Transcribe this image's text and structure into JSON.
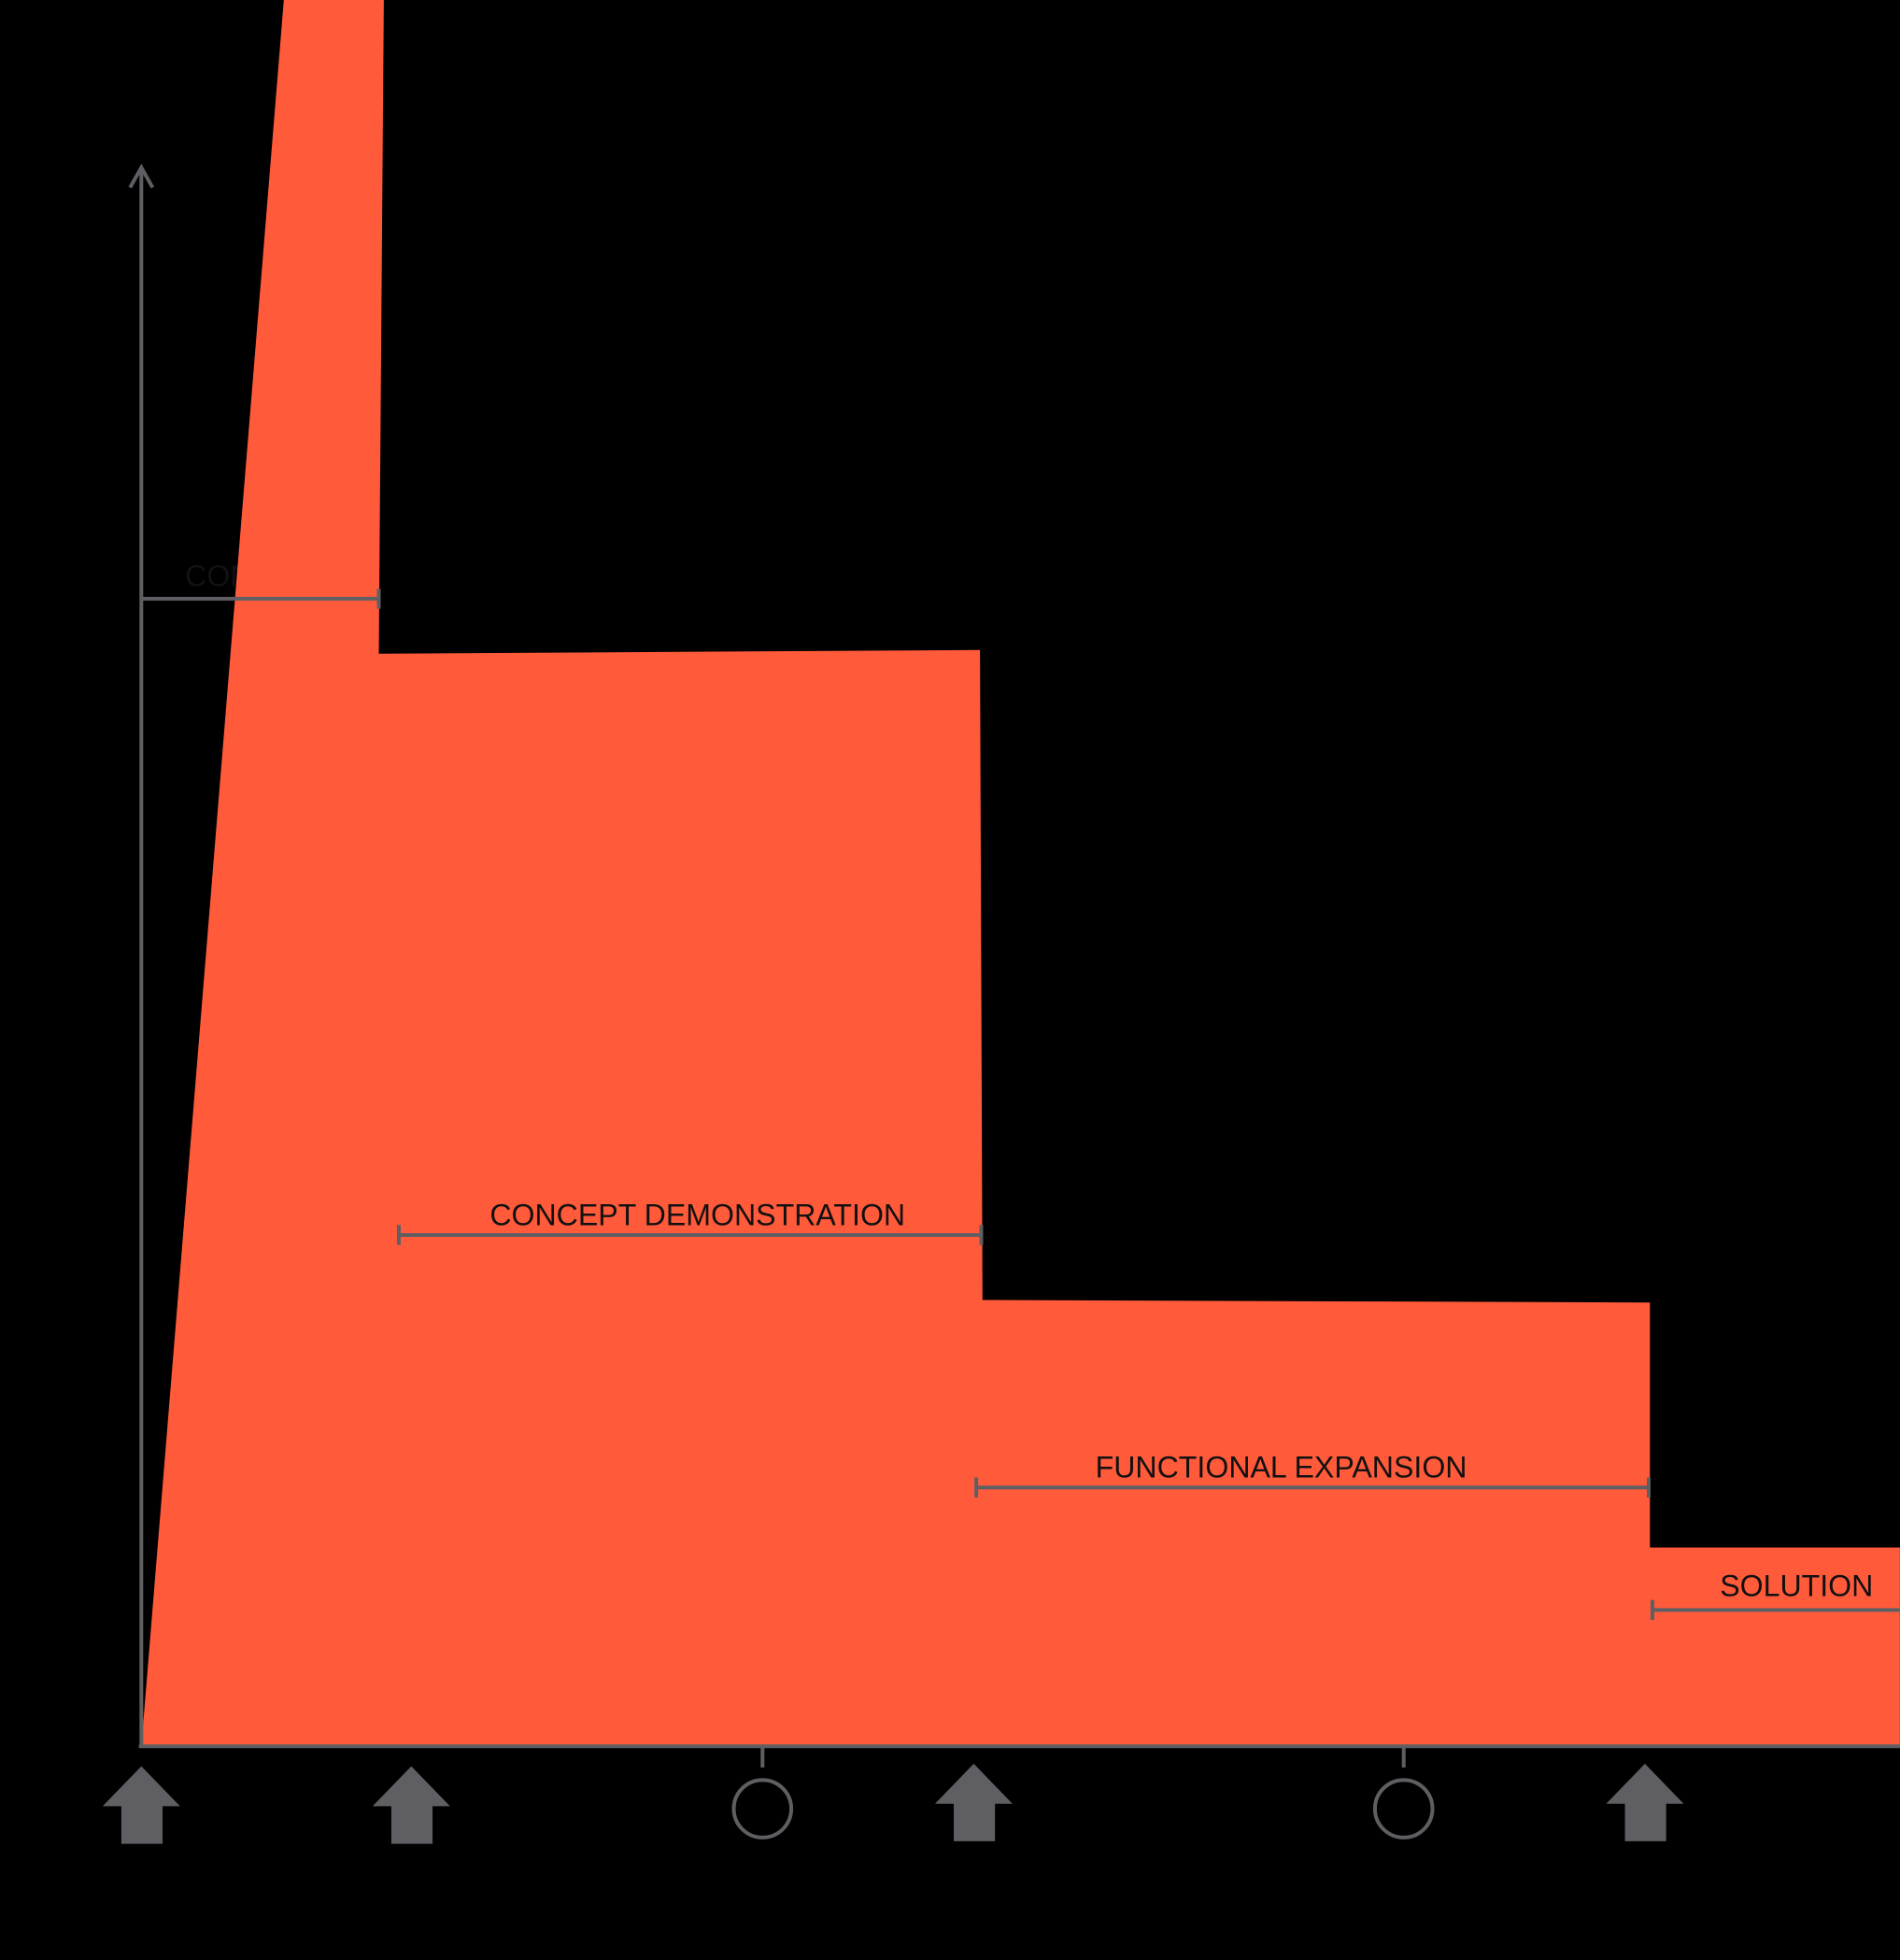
{
  "phases": [
    "CONCEPT",
    "CONCEPT DEMONSTRATION",
    "FUNCTIONAL EXPANSION",
    "SOLUTION"
  ]
}
